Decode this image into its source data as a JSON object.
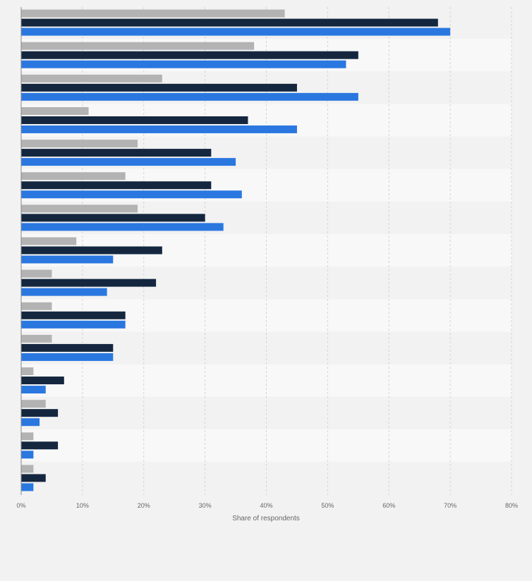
{
  "chart_data": {
    "type": "bar",
    "orientation": "horizontal",
    "xlabel": "Share of respondents",
    "xlim": [
      0,
      80
    ],
    "x_ticks": [
      "0%",
      "10%",
      "20%",
      "30%",
      "40%",
      "50%",
      "60%",
      "70%",
      "80%"
    ],
    "grid": true,
    "category_labels_visible": false,
    "categories": [
      "",
      "",
      "",
      "",
      "",
      "",
      "",
      "",
      "",
      "",
      "",
      "",
      "",
      "",
      ""
    ],
    "series": [
      {
        "color": "#b3b3b3",
        "values": [
          43,
          38,
          23,
          11,
          19,
          17,
          19,
          9,
          5,
          5,
          5,
          2,
          4,
          2,
          2
        ]
      },
      {
        "color": "#14273f",
        "values": [
          68,
          55,
          45,
          37,
          31,
          31,
          30,
          23,
          22,
          17,
          15,
          7,
          6,
          6,
          4
        ]
      },
      {
        "color": "#2a77e0",
        "values": [
          70,
          53,
          55,
          45,
          35,
          36,
          33,
          15,
          14,
          17,
          15,
          4,
          3,
          2,
          2
        ]
      }
    ],
    "colors": {
      "background": "#f2f2f2",
      "band_light": "#f8f8f8",
      "band_dark": "#f2f2f2",
      "grid": "#d4d4d4",
      "axis": "#888888",
      "text": "#666666"
    }
  }
}
